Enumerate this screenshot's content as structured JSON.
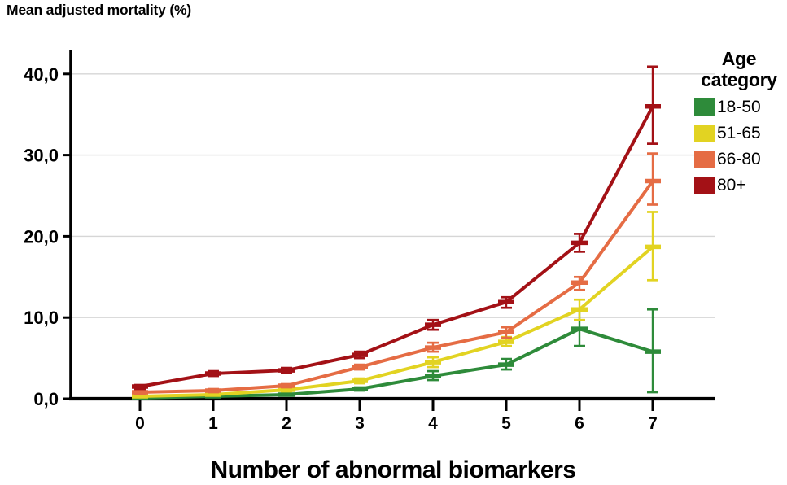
{
  "chart_title": "Mean adjusted mortality (%)",
  "chart_data": {
    "type": "line",
    "title": "Mean adjusted mortality (%)",
    "xlabel": "Number of abnormal biomarkers",
    "ylabel": "Mean adjusted mortality (%)",
    "x_tick_labels": [
      "0",
      "1",
      "2",
      "3",
      "4",
      "5",
      "6",
      "7"
    ],
    "y_tick_labels": [
      "0,0",
      "10,0",
      "20,0",
      "30,0",
      "40,0"
    ],
    "y_tick_values": [
      0,
      10,
      20,
      30,
      40
    ],
    "ylim": [
      0,
      41
    ],
    "grid": true,
    "error_bars": true,
    "legend_title": "Age category",
    "legend_position": "right",
    "axis_color": "#000000",
    "grid_color": "#d6d6d6",
    "series": [
      {
        "name": "18-50",
        "color": "#2e8b3a",
        "values": [
          0.1,
          0.3,
          0.5,
          1.2,
          2.8,
          4.2,
          8.6,
          5.8
        ],
        "ci_low": [
          0.0,
          0.2,
          0.4,
          1.0,
          2.3,
          3.6,
          6.5,
          0.8
        ],
        "ci_high": [
          0.2,
          0.4,
          0.7,
          1.4,
          3.4,
          4.9,
          10.8,
          11.0
        ]
      },
      {
        "name": "51-65",
        "color": "#e2d322",
        "values": [
          0.3,
          0.5,
          1.1,
          2.2,
          4.5,
          7.0,
          11.0,
          18.7
        ],
        "ci_low": [
          0.2,
          0.4,
          0.9,
          1.9,
          3.9,
          6.5,
          9.7,
          14.6
        ],
        "ci_high": [
          0.4,
          0.7,
          1.3,
          2.5,
          5.1,
          7.6,
          12.2,
          23.0
        ]
      },
      {
        "name": "66-80",
        "color": "#e56c44",
        "values": [
          0.8,
          1.0,
          1.6,
          3.9,
          6.3,
          8.2,
          14.3,
          26.8
        ],
        "ci_low": [
          0.6,
          0.8,
          1.4,
          3.6,
          5.8,
          7.5,
          13.4,
          23.9
        ],
        "ci_high": [
          1.0,
          1.2,
          1.8,
          4.2,
          6.9,
          8.8,
          15.0,
          30.2
        ]
      },
      {
        "name": "80+",
        "color": "#a31116",
        "values": [
          1.5,
          3.1,
          3.5,
          5.4,
          9.1,
          11.9,
          19.2,
          36.0
        ],
        "ci_low": [
          1.2,
          2.8,
          3.2,
          5.0,
          8.5,
          11.2,
          18.1,
          31.4
        ],
        "ci_high": [
          1.7,
          3.4,
          3.8,
          5.8,
          9.7,
          12.5,
          20.3,
          40.9
        ]
      }
    ]
  }
}
